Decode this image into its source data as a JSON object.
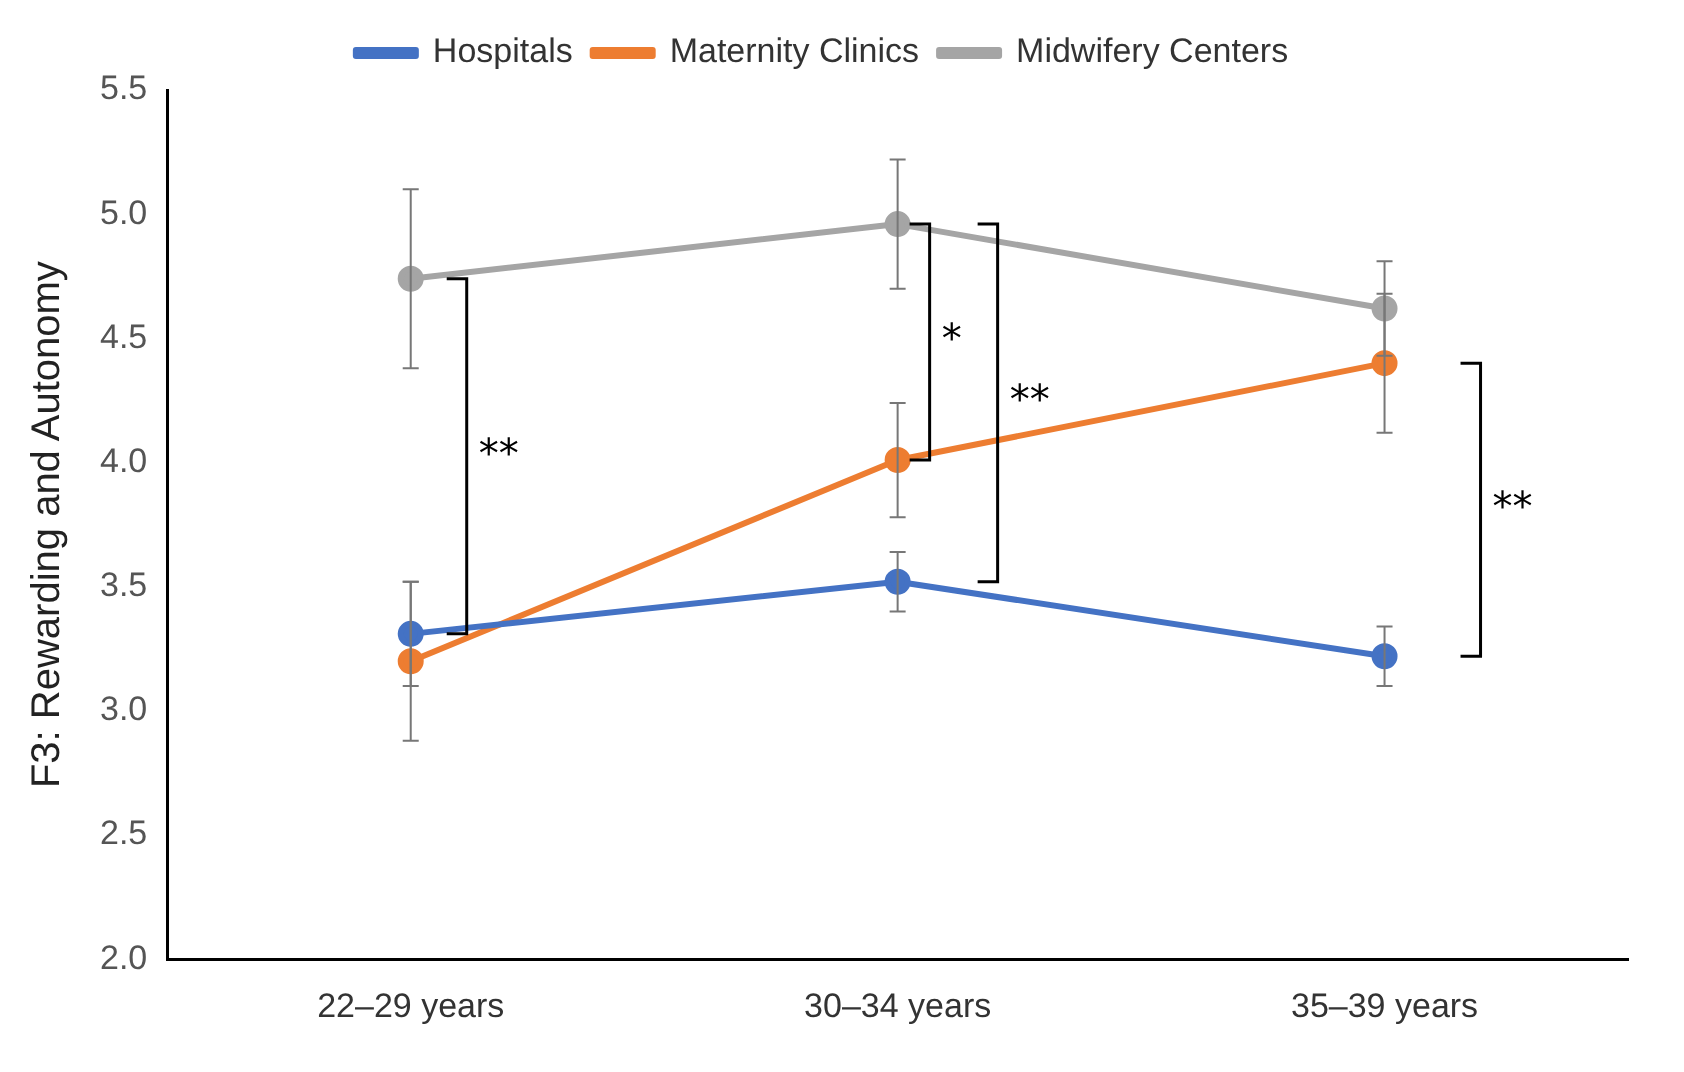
{
  "chart_data": {
    "type": "line",
    "ylabel": "F3: Rewarding and Autonomy",
    "categories": [
      "22–29 years",
      "30–34 years",
      "35–39 years"
    ],
    "series": [
      {
        "name": "Hospitals",
        "color": "#4472c4",
        "values": [
          3.31,
          3.52,
          3.22
        ],
        "errors": [
          0.21,
          0.12,
          0.12
        ]
      },
      {
        "name": "Maternity Clinics",
        "color": "#ed7d31",
        "values": [
          3.2,
          4.01,
          4.4
        ],
        "errors": [
          0.32,
          0.23,
          0.28
        ]
      },
      {
        "name": "Midwifery Centers",
        "color": "#a5a5a5",
        "values": [
          4.74,
          4.96,
          4.62
        ],
        "errors": [
          0.36,
          0.26,
          0.19
        ]
      }
    ],
    "ylim": [
      2.0,
      5.5
    ],
    "yticks": [
      {
        "value": 2,
        "label": "2.0"
      },
      2.5,
      {
        "value": 3,
        "label": "3.0"
      },
      3.5,
      {
        "value": 4,
        "label": "4.0"
      },
      4.5,
      {
        "value": 5,
        "label": "5.0"
      },
      5.5
    ],
    "grid": false,
    "legend": "top",
    "marker": "circle",
    "line_style": "solid",
    "annotations": [
      "**",
      "*",
      "**",
      "**"
    ]
  }
}
